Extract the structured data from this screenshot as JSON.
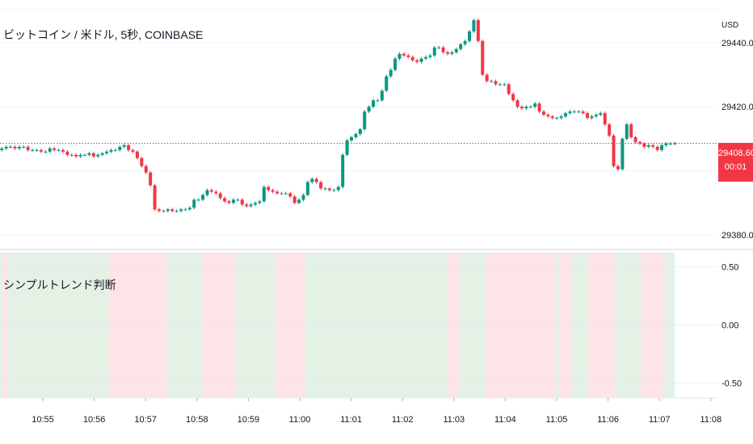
{
  "header": {
    "title": "ビットコイン / 米ドル, 5秒, COINBASE",
    "currency": "USD"
  },
  "indicator": {
    "title": "シンプルトレンド判断"
  },
  "price_label": {
    "price": "29408.60",
    "countdown": "00:01"
  },
  "colors": {
    "up": "#089981",
    "down": "#f23645",
    "bg_up": "#e3f2e5",
    "bg_down": "#fde4e6",
    "grid": "#f0f3fa"
  },
  "chart_data": [
    {
      "type": "candlestick",
      "title": "ビットコイン / 米ドル, 5秒, COINBASE",
      "ylabel": "USD",
      "ylim": [
        29376.5,
        29453.3
      ],
      "y_ticks": [
        29380,
        29400,
        29420,
        29440
      ],
      "y_tick_labels": [
        "29380.00",
        "29400.00",
        "29420.00",
        "29440.00"
      ],
      "x_tick_labels": [
        "10:55",
        "10:56",
        "10:57",
        "10:58",
        "10:59",
        "11:00",
        "11:01",
        "11:02",
        "11:03",
        "11:04",
        "11:05",
        "11:06",
        "11:07",
        "11:08"
      ],
      "last_price": 29408.6,
      "close_series": [
        29406.5,
        29407.0,
        29407.5,
        29407.5,
        29407.0,
        29407.5,
        29407.5,
        29406.5,
        29406.5,
        29406.5,
        29406.0,
        29406.0,
        29407.0,
        29406.5,
        29406.5,
        29406.0,
        29405.0,
        29405.0,
        29404.5,
        29405.0,
        29405.0,
        29405.5,
        29404.5,
        29405.0,
        29405.5,
        29406.0,
        29406.5,
        29406.5,
        29407.5,
        29408.0,
        29406.5,
        29406.0,
        29404.0,
        29401.5,
        29399.5,
        29395.5,
        29388.0,
        29387.5,
        29387.5,
        29388.0,
        29387.5,
        29387.5,
        29388.0,
        29388.0,
        29388.5,
        29391.0,
        29391.0,
        29392.5,
        29394.0,
        29393.5,
        29393.0,
        29391.5,
        29390.5,
        29390.0,
        29391.0,
        29391.0,
        29389.5,
        29389.0,
        29389.5,
        29390.0,
        29390.5,
        29395.0,
        29394.0,
        29393.5,
        29393.0,
        29393.0,
        29393.0,
        29392.0,
        29390.0,
        29391.0,
        29392.5,
        29396.5,
        29397.5,
        29396.5,
        29394.5,
        29394.5,
        29394.0,
        29394.0,
        29395.0,
        29405.0,
        29409.5,
        29410.5,
        29411.5,
        29413.0,
        29418.5,
        29420.0,
        29422.0,
        29422.0,
        29425.0,
        29429.5,
        29431.5,
        29435.0,
        29436.5,
        29436.0,
        29435.5,
        29434.5,
        29434.0,
        29435.0,
        29435.5,
        29436.0,
        29438.5,
        29438.5,
        29437.0,
        29436.5,
        29437.0,
        29438.0,
        29439.5,
        29440.5,
        29443.5,
        29447.0,
        29440.5,
        29430.0,
        29428.0,
        29428.0,
        29427.0,
        29427.0,
        29427.0,
        29424.0,
        29422.0,
        29420.0,
        29419.5,
        29420.0,
        29420.0,
        29421.0,
        29418.5,
        29417.5,
        29417.0,
        29416.5,
        29416.5,
        29417.0,
        29418.0,
        29418.5,
        29418.5,
        29418.5,
        29418.0,
        29416.5,
        29417.0,
        29417.5,
        29418.0,
        29414.5,
        29411.0,
        29401.5,
        29400.5,
        29410.0,
        29414.5,
        29410.5,
        29409.0,
        29408.5,
        29407.5,
        29408.0,
        29407.5,
        29406.5,
        29408.0,
        29408.5,
        29408.5,
        29408.6
      ]
    },
    {
      "type": "area",
      "title": "シンプルトレンド判断",
      "ylim": [
        -0.62,
        0.62
      ],
      "y_ticks": [
        0.5,
        0.0,
        -0.5
      ],
      "y_tick_labels": [
        "0.50",
        "0.00",
        "-0.50"
      ],
      "trend_segments": [
        {
          "start": "10:54:07",
          "end": "10:54:13",
          "trend": "up"
        },
        {
          "start": "10:54:13",
          "end": "10:54:20",
          "trend": "down"
        },
        {
          "start": "10:54:20",
          "end": "10:56:17",
          "trend": "up"
        },
        {
          "start": "10:56:17",
          "end": "10:57:25",
          "trend": "down"
        },
        {
          "start": "10:57:25",
          "end": "10:58:06",
          "trend": "up"
        },
        {
          "start": "10:58:06",
          "end": "10:58:46",
          "trend": "down"
        },
        {
          "start": "10:58:46",
          "end": "10:59:31",
          "trend": "up"
        },
        {
          "start": "10:59:31",
          "end": "11:00:06",
          "trend": "down"
        },
        {
          "start": "11:00:06",
          "end": "11:02:53",
          "trend": "up"
        },
        {
          "start": "11:02:53",
          "end": "11:03:06",
          "trend": "down"
        },
        {
          "start": "11:03:06",
          "end": "11:03:37",
          "trend": "up"
        },
        {
          "start": "11:03:37",
          "end": "11:04:59",
          "trend": "down"
        },
        {
          "start": "11:04:59",
          "end": "11:05:04",
          "trend": "up"
        },
        {
          "start": "11:05:04",
          "end": "11:05:18",
          "trend": "down"
        },
        {
          "start": "11:05:18",
          "end": "11:05:36",
          "trend": "up"
        },
        {
          "start": "11:05:36",
          "end": "11:06:09",
          "trend": "down"
        },
        {
          "start": "11:06:09",
          "end": "11:06:38",
          "trend": "up"
        },
        {
          "start": "11:06:38",
          "end": "11:07:06",
          "trend": "down"
        },
        {
          "start": "11:07:06",
          "end": "11:07:18",
          "trend": "up"
        }
      ]
    }
  ]
}
